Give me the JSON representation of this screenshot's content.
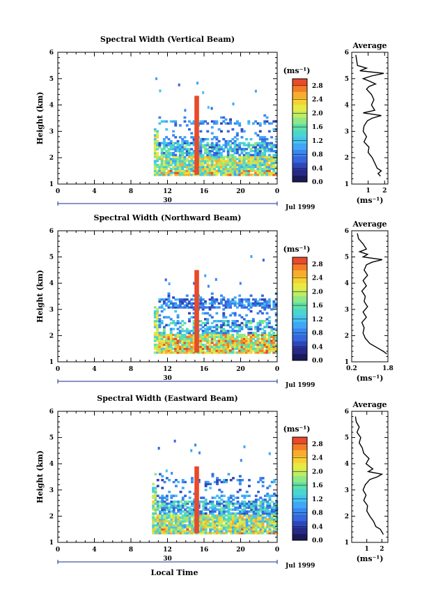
{
  "chart_data": [
    {
      "type": "heatmap",
      "title": "Spectral Width (Vertical Beam)",
      "ylabel": "Height (km)",
      "xlim": [
        0,
        24
      ],
      "ylim": [
        1,
        6
      ],
      "x_ticks": [
        "0",
        "4",
        "8",
        "12",
        "16",
        "20",
        "0"
      ],
      "y_ticks": [
        "1",
        "2",
        "3",
        "4",
        "5",
        "6"
      ],
      "date_day": "30",
      "date_label": "Jul 1999",
      "colorbar": {
        "unit": "(ms⁻¹)",
        "range": [
          0,
          3.0
        ],
        "ticks": [
          "0.0",
          "0.4",
          "0.8",
          "1.2",
          "1.6",
          "2.0",
          "2.4",
          "2.8"
        ]
      },
      "data_start_hour": 10.5,
      "spike": {
        "hour": 15.2,
        "top_km": 4.35,
        "value": 3.0
      },
      "profile": {
        "title": "Average",
        "xlabel": "(ms⁻¹)",
        "x_ticks": [
          "1",
          "2"
        ],
        "xlim": [
          0,
          2.2
        ],
        "y": [
          1.3,
          1.4,
          1.5,
          1.6,
          1.8,
          2.0,
          2.2,
          2.4,
          2.6,
          2.8,
          3.0,
          3.2,
          3.4,
          3.5,
          3.6,
          3.7,
          3.8,
          3.9,
          4.0,
          4.2,
          4.4,
          4.6,
          4.7,
          4.8,
          4.9,
          5.0,
          5.1,
          5.2,
          5.3,
          5.4,
          5.5,
          5.7,
          5.9
        ],
        "x": [
          1.75,
          1.6,
          1.8,
          1.55,
          1.4,
          1.25,
          1.0,
          1.05,
          0.75,
          0.9,
          0.7,
          0.75,
          0.95,
          1.25,
          1.8,
          0.7,
          1.4,
          1.3,
          1.2,
          1.35,
          1.2,
          0.9,
          1.05,
          1.45,
          1.1,
          0.7,
          1.2,
          1.95,
          0.5,
          0.9,
          0.35,
          0.3,
          0.25
        ]
      }
    },
    {
      "type": "heatmap",
      "title": "Spectral Width (Northward Beam)",
      "ylabel": "Height (km)",
      "xlim": [
        0,
        24
      ],
      "ylim": [
        1,
        6
      ],
      "x_ticks": [
        "0",
        "4",
        "8",
        "12",
        "16",
        "20",
        "0"
      ],
      "y_ticks": [
        "1",
        "2",
        "3",
        "4",
        "5",
        "6"
      ],
      "date_day": "30",
      "date_label": "Jul 1999",
      "colorbar": {
        "unit": "(ms⁻¹)",
        "range": [
          0,
          3.0
        ],
        "ticks": [
          "0.0",
          "0.4",
          "0.8",
          "1.2",
          "1.6",
          "2.0",
          "2.4",
          "2.8"
        ]
      },
      "data_start_hour": 10.5,
      "spike": {
        "hour": 15.2,
        "top_km": 4.5,
        "value": 3.0
      },
      "profile": {
        "title": "Average",
        "xlabel": "(ms⁻¹)",
        "x_ticks": [
          "0.2",
          "1.8"
        ],
        "xlim": [
          0.2,
          1.8
        ],
        "y": [
          1.3,
          1.4,
          1.5,
          1.7,
          1.9,
          2.1,
          2.3,
          2.5,
          2.7,
          2.9,
          3.1,
          3.3,
          3.5,
          3.7,
          3.9,
          4.1,
          4.3,
          4.5,
          4.7,
          4.8,
          4.9,
          5.0,
          5.1,
          5.2,
          5.3,
          5.5,
          5.7,
          5.9
        ],
        "x": [
          1.75,
          1.6,
          1.4,
          1.0,
          0.8,
          0.7,
          0.75,
          0.65,
          0.85,
          0.7,
          0.9,
          0.75,
          0.8,
          0.65,
          0.85,
          0.7,
          0.9,
          0.75,
          0.85,
          1.1,
          1.55,
          0.7,
          0.9,
          0.55,
          0.85,
          0.7,
          0.5,
          0.45
        ]
      }
    },
    {
      "type": "heatmap",
      "title": "Spectral Width (Eastward Beam)",
      "ylabel": "Height (km)",
      "xlabel": "Local Time",
      "xlim": [
        0,
        24
      ],
      "ylim": [
        1,
        6
      ],
      "x_ticks": [
        "0",
        "4",
        "8",
        "12",
        "16",
        "20",
        "0"
      ],
      "y_ticks": [
        "1",
        "2",
        "3",
        "4",
        "5",
        "6"
      ],
      "date_day": "30",
      "date_label": "Jul 1999",
      "colorbar": {
        "unit": "(ms⁻¹)",
        "range": [
          0,
          3.0
        ],
        "ticks": [
          "0.0",
          "0.4",
          "0.8",
          "1.2",
          "1.6",
          "2.0",
          "2.4",
          "2.8"
        ]
      },
      "data_start_hour": 10.3,
      "spike": {
        "hour": 15.2,
        "top_km": 3.9,
        "value": 3.0
      },
      "profile": {
        "title": "Average",
        "xlabel": "(ms⁻¹)",
        "x_ticks": [
          "1",
          "2"
        ],
        "xlim": [
          0,
          2.4
        ],
        "y": [
          1.3,
          1.4,
          1.5,
          1.6,
          1.8,
          2.0,
          2.2,
          2.4,
          2.6,
          2.8,
          3.0,
          3.2,
          3.4,
          3.5,
          3.6,
          3.7,
          3.8,
          4.0,
          4.2,
          4.4,
          4.6,
          4.8,
          5.0,
          5.2,
          5.4,
          5.6,
          5.8
        ],
        "x": [
          2.1,
          2.0,
          1.9,
          1.6,
          1.45,
          1.2,
          1.0,
          1.05,
          0.8,
          0.95,
          0.75,
          0.9,
          1.2,
          1.7,
          2.0,
          1.1,
          1.4,
          0.95,
          1.15,
          0.8,
          0.7,
          0.5,
          0.6,
          0.35,
          0.5,
          0.3,
          0.25
        ]
      }
    }
  ]
}
